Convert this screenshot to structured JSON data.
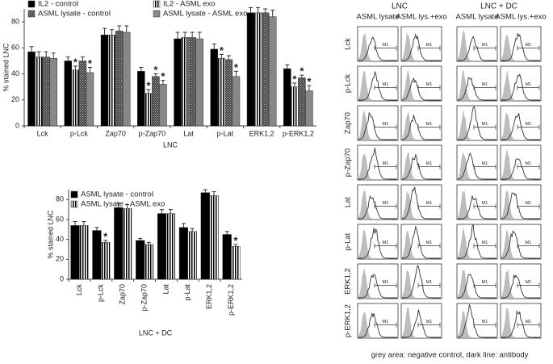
{
  "chart_data": [
    {
      "type": "bar",
      "ylabel": "% stained LNC",
      "xlabel": "LNC",
      "categories": [
        "Lck",
        "p-Lck",
        "Zap70",
        "p-Zap70",
        "Lat",
        "p-Lat",
        "ERK1,2",
        "p-ERK1,2"
      ],
      "series": [
        {
          "name": "IL2 - control",
          "color": "#000000",
          "pattern": "solid",
          "values": [
            57,
            50,
            70,
            42,
            67,
            59,
            87,
            44
          ],
          "errors": [
            4,
            3,
            5,
            3,
            5,
            4,
            4,
            3
          ]
        },
        {
          "name": "IL2 - ASML exo",
          "color": "#000000",
          "pattern": "vertical-stripes",
          "values": [
            53,
            43,
            70,
            25,
            68,
            52,
            87,
            30
          ],
          "errors": [
            4,
            3,
            4,
            3,
            4,
            3,
            4,
            3
          ]
        },
        {
          "name": "ASML lysate - control",
          "color": "#444444",
          "pattern": "checker",
          "values": [
            53,
            50,
            73,
            38,
            68,
            51,
            87,
            37
          ],
          "errors": [
            4,
            3,
            4,
            2,
            4,
            3,
            3,
            2
          ]
        },
        {
          "name": "ASML lysate - ASML exo",
          "color": "#888888",
          "pattern": "solid",
          "values": [
            52,
            41,
            72,
            32,
            67,
            38,
            84,
            27
          ],
          "errors": [
            4,
            4,
            5,
            3,
            5,
            4,
            5,
            4
          ]
        }
      ],
      "annotations": [
        {
          "text": "*",
          "category": 1,
          "series": 1
        },
        {
          "text": "*",
          "category": 1,
          "series": 3
        },
        {
          "text": "*",
          "category": 3,
          "series": 1
        },
        {
          "text": "*",
          "category": 3,
          "series": 2
        },
        {
          "text": "*",
          "category": 3,
          "series": 3
        },
        {
          "text": "*",
          "category": 5,
          "series": 1
        },
        {
          "text": "*",
          "category": 5,
          "series": 3
        },
        {
          "text": "*",
          "category": 7,
          "series": 1
        },
        {
          "text": "*",
          "category": 7,
          "series": 2
        },
        {
          "text": "*",
          "category": 7,
          "series": 3
        }
      ],
      "ylim": [
        0,
        90
      ],
      "yticks": [
        0,
        20,
        40,
        60,
        80
      ],
      "legend": "top",
      "legend_columns": 2,
      "rotate_labels": false
    },
    {
      "type": "bar",
      "ylabel": "% stained LNC",
      "xlabel": "LNC + DC",
      "categories": [
        "Lck",
        "p-Lck",
        "Zap70",
        "p-Zap70",
        "Lat",
        "p-Lat",
        "ERK1,2",
        "p-ERK1,2"
      ],
      "series": [
        {
          "name": "ASML lysate - control",
          "color": "#000000",
          "pattern": "solid",
          "values": [
            54,
            49,
            72,
            39,
            66,
            52,
            87,
            45
          ],
          "errors": [
            4,
            3,
            4,
            2,
            4,
            4,
            3,
            3
          ]
        },
        {
          "name": "ASML lysate - ASML exo",
          "color": "#000000",
          "pattern": "vertical-stripes",
          "values": [
            54,
            37,
            71,
            35,
            66,
            48,
            84,
            33
          ],
          "errors": [
            4,
            2,
            4,
            2,
            4,
            3,
            4,
            2
          ]
        }
      ],
      "annotations": [
        {
          "text": "*",
          "category": 1,
          "series": 1
        },
        {
          "text": "*",
          "category": 7,
          "series": 1
        }
      ],
      "ylim": [
        0,
        90
      ],
      "yticks": [
        0,
        20,
        40,
        60,
        80
      ],
      "legend": "top-left",
      "legend_columns": 1,
      "rotate_labels": true
    }
  ],
  "flow_panel": {
    "headers": [
      "LNC",
      "LNC + DC"
    ],
    "columns": [
      "ASML lysate",
      "ASML lys.+exo",
      "ASML lysate",
      "ASML lys.+exo"
    ],
    "rows": [
      "Lck",
      "p-Lck",
      "Zap70",
      "p-Zap70",
      "Lat",
      "p-Lat",
      "ERK1,2",
      "p-ERK1,2"
    ],
    "marker": "M1",
    "caption": "grey area: negative control, dark line: antibody"
  }
}
